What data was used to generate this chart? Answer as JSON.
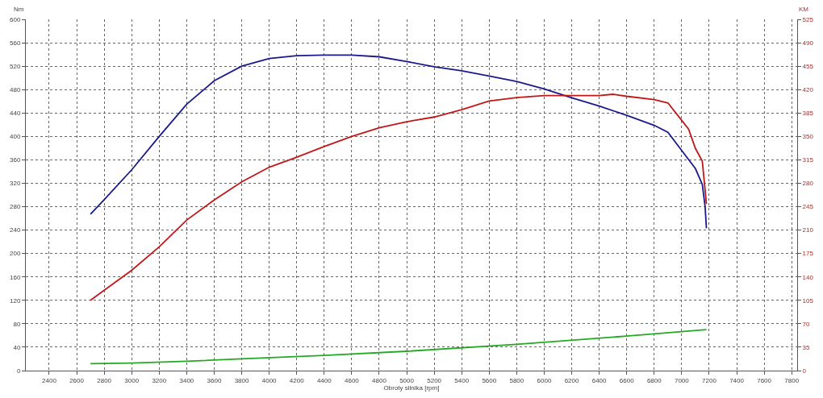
{
  "chart_data": {
    "type": "line",
    "xlabel": "Obroty silnika [rpm]",
    "ylabel": "Nm",
    "y2label": "KM",
    "xlim": [
      2230,
      7840
    ],
    "xticks": [
      2400,
      2600,
      2800,
      3000,
      3200,
      3400,
      3600,
      3800,
      4000,
      4200,
      4400,
      4600,
      4800,
      5000,
      5200,
      5400,
      5600,
      5800,
      6000,
      6200,
      6400,
      6600,
      6800,
      7000,
      7200,
      7400,
      7600,
      7800
    ],
    "ylim": [
      0,
      600
    ],
    "yticks": [
      0,
      40,
      80,
      120,
      160,
      200,
      240,
      280,
      320,
      360,
      400,
      440,
      480,
      520,
      560,
      600
    ],
    "y2lim": [
      0,
      525
    ],
    "y2ticks": [
      0,
      35,
      70,
      105,
      140,
      175,
      210,
      245,
      280,
      315,
      350,
      385,
      420,
      455,
      490,
      525
    ],
    "grid": true,
    "line_style": "solid",
    "marker": "none",
    "series": [
      {
        "color": "#1a1a8c",
        "x": [
          2700,
          2800,
          3000,
          3200,
          3400,
          3600,
          3800,
          4000,
          4200,
          4400,
          4600,
          4800,
          5000,
          5200,
          5400,
          5600,
          5800,
          6000,
          6200,
          6400,
          6600,
          6800,
          6900,
          7000,
          7100,
          7150,
          7170,
          7180
        ],
        "values": [
          267,
          292,
          343,
          400,
          455,
          495,
          520,
          533,
          538,
          539,
          539,
          536,
          528,
          519,
          512,
          503,
          494,
          481,
          466,
          452,
          436,
          419,
          407,
          376,
          345,
          318,
          281,
          243
        ]
      },
      {
        "color": "#c01818",
        "axis": "y2",
        "x": [
          2700,
          2800,
          3000,
          3200,
          3400,
          3600,
          3800,
          4000,
          4200,
          4400,
          4600,
          4800,
          5000,
          5200,
          5400,
          5600,
          5800,
          6000,
          6200,
          6400,
          6500,
          6600,
          6800,
          6900,
          7000,
          7050,
          7100,
          7150,
          7180
        ],
        "values": [
          105,
          120,
          150,
          185,
          225,
          255,
          282,
          304,
          319,
          335,
          350,
          363,
          372,
          379,
          390,
          403,
          408,
          411,
          411,
          411,
          413,
          410,
          405,
          400,
          374,
          361,
          332,
          313,
          249
        ]
      },
      {
        "color": "#22aa22",
        "x": [
          2700,
          3000,
          3400,
          3800,
          4400,
          5000,
          5800,
          6600,
          7180
        ],
        "values": [
          12,
          13,
          16,
          20,
          26,
          33,
          45,
          59,
          70
        ]
      }
    ]
  }
}
